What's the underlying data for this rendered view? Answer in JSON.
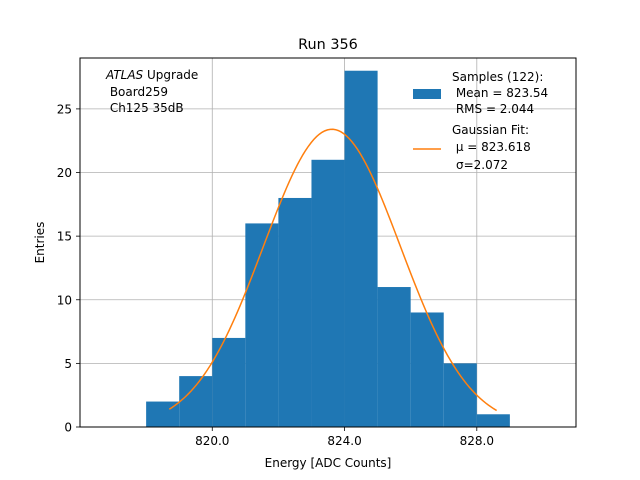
{
  "chart_data": {
    "type": "bar",
    "title": "Run 356",
    "xlabel": "Energy [ADC Counts]",
    "ylabel": "Entries",
    "xlim": [
      816.0,
      831.0
    ],
    "ylim": [
      0,
      29
    ],
    "grid": true,
    "xticks": [
      820.0,
      824.0,
      828.0
    ],
    "xtick_labels": [
      "820.0",
      "824.0",
      "828.0"
    ],
    "yticks": [
      0,
      5,
      10,
      15,
      20,
      25
    ],
    "yticks_labels": [
      "0",
      "5",
      "10",
      "15",
      "20",
      "25"
    ],
    "bins": [
      {
        "x0": 818.0,
        "x1": 819.0,
        "count": 2
      },
      {
        "x0": 819.0,
        "x1": 820.0,
        "count": 4
      },
      {
        "x0": 820.0,
        "x1": 821.0,
        "count": 7
      },
      {
        "x0": 821.0,
        "x1": 822.0,
        "count": 16
      },
      {
        "x0": 822.0,
        "x1": 823.0,
        "count": 18
      },
      {
        "x0": 823.0,
        "x1": 824.0,
        "count": 21
      },
      {
        "x0": 824.0,
        "x1": 825.0,
        "count": 28
      },
      {
        "x0": 825.0,
        "x1": 826.0,
        "count": 11
      },
      {
        "x0": 826.0,
        "x1": 827.0,
        "count": 9
      },
      {
        "x0": 827.0,
        "x1": 828.0,
        "count": 5
      },
      {
        "x0": 828.0,
        "x1": 829.0,
        "count": 1
      }
    ],
    "fit": {
      "type": "gaussian",
      "amplitude": 23.4,
      "mu": 823.618,
      "sigma": 2.072,
      "x_range": [
        818.7,
        828.6
      ]
    },
    "colors": {
      "bars": "#1f77b4",
      "fit": "#ff7f0e",
      "grid": "#b0b0b0"
    },
    "annotation": {
      "line1_italic": "ATLAS",
      "line1_rest": " Upgrade",
      "line2": " Board259",
      "line3": " Ch125 35dB"
    },
    "legend": {
      "position": "upper right",
      "samples": {
        "line1": "Samples (122):",
        "line2": " Mean = 823.54",
        "line3": " RMS = 2.044"
      },
      "fit": {
        "line1": "Gaussian Fit:",
        "line2": " μ = 823.618",
        "line3": "σ=2.072"
      }
    }
  }
}
